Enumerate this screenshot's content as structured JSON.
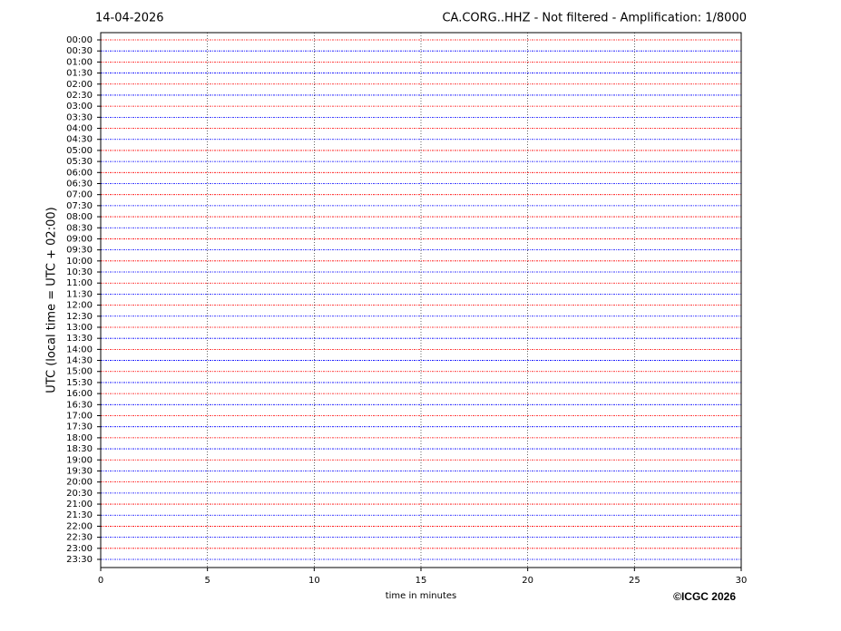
{
  "chart_data": {
    "type": "helicorder",
    "date": "14-04-2026",
    "title": "CA.CORG..HHZ - Not filtered - Amplification: 1/8000",
    "ylabel": "UTC (local time = UTC + 02:00)",
    "xlabel": "time in minutes",
    "credit": "©ICGC 2026",
    "categories": [
      "00:00",
      "00:30",
      "01:00",
      "01:30",
      "02:00",
      "02:30",
      "03:00",
      "03:30",
      "04:00",
      "04:30",
      "05:00",
      "05:30",
      "06:00",
      "06:30",
      "07:00",
      "07:30",
      "08:00",
      "08:30",
      "09:00",
      "09:30",
      "10:00",
      "10:30",
      "11:00",
      "11:30",
      "12:00",
      "12:30",
      "13:00",
      "13:30",
      "14:00",
      "14:30",
      "15:00",
      "15:30",
      "16:00",
      "16:30",
      "17:00",
      "17:30",
      "18:00",
      "18:30",
      "19:00",
      "19:30",
      "20:00",
      "20:30",
      "21:00",
      "21:30",
      "22:00",
      "22:30",
      "23:00",
      "23:30"
    ],
    "colors": [
      "#ff0000",
      "#0000ff"
    ],
    "xlim": [
      0,
      30
    ],
    "xticks": [
      0,
      5,
      10,
      15,
      20,
      25,
      30
    ],
    "grid": true
  }
}
